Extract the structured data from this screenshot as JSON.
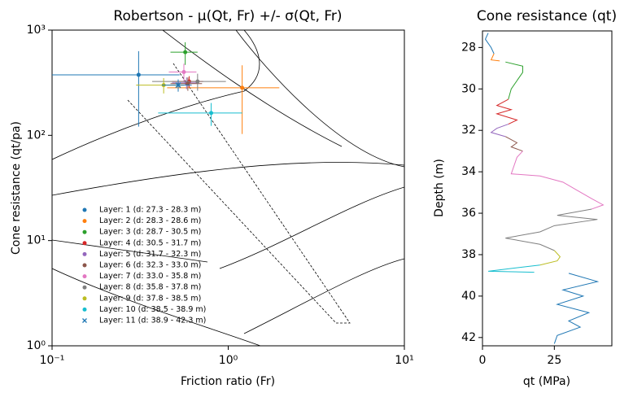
{
  "chart_data": [
    {
      "type": "scatter",
      "title": "Robertson - μ(Qt, Fr) +/- σ(Qt, Fr)",
      "x_label": "Friction ratio (Fr)",
      "y_label": "Cone resistance (qt/pa)",
      "xscale": "log",
      "yscale": "log",
      "legend": "lower left",
      "xlim": [
        0.1,
        10
      ],
      "ylim": [
        1,
        1000
      ],
      "xticks": [
        {
          "value": 0.1,
          "label": "10⁻¹"
        },
        {
          "value": 1,
          "label": "10⁰"
        },
        {
          "value": 10,
          "label": "10¹"
        }
      ],
      "yticks": [
        {
          "value": 1,
          "label": "10⁰"
        },
        {
          "value": 10,
          "label": "10¹"
        },
        {
          "value": 100,
          "label": "10²"
        },
        {
          "value": 1000,
          "label": "10³"
        }
      ],
      "series": [
        {
          "name": "Layer: 1 (d: 27.3 - 28.3 m)",
          "color": "#1f77b4",
          "marker": "o",
          "x": [
            0.31
          ],
          "values": [
            376
          ],
          "xerr": [
            0.22
          ],
          "yerr": [
            255
          ]
        },
        {
          "name": "Layer: 2 (d: 28.3 - 28.6 m)",
          "color": "#ff7f0e",
          "marker": "o",
          "x": [
            1.2
          ],
          "values": [
            283
          ],
          "xerr": [
            0.75
          ],
          "yerr": [
            180
          ]
        },
        {
          "name": "Layer: 3 (d: 28.7 - 30.5 m)",
          "color": "#2ca02c",
          "marker": "o",
          "x": [
            0.57
          ],
          "values": [
            617
          ],
          "xerr": [
            0.1
          ],
          "yerr": [
            150
          ]
        },
        {
          "name": "Layer: 4 (d: 30.5 - 31.7 m)",
          "color": "#d62728",
          "marker": "o",
          "x": [
            0.6
          ],
          "values": [
            325
          ],
          "xerr": [
            0.12
          ],
          "yerr": [
            40
          ]
        },
        {
          "name": "Layer: 5 (d: 31.7 - 32.3 m)",
          "color": "#9467bd",
          "marker": "o",
          "x": [
            0.58
          ],
          "values": [
            315
          ],
          "xerr": [
            0.1
          ],
          "yerr": [
            40
          ]
        },
        {
          "name": "Layer: 6 (d: 32.3 - 33.0 m)",
          "color": "#8c564b",
          "marker": "o",
          "x": [
            0.59
          ],
          "values": [
            310
          ],
          "xerr": [
            0.12
          ],
          "yerr": [
            45
          ]
        },
        {
          "name": "Layer: 7 (d: 33.0 - 35.8 m)",
          "color": "#e377c2",
          "marker": "o",
          "x": [
            0.56
          ],
          "values": [
            400
          ],
          "xerr": [
            0.1
          ],
          "yerr": [
            80
          ]
        },
        {
          "name": "Layer: 8 (d: 35.8 - 37.8 m)",
          "color": "#7f7f7f",
          "marker": "o",
          "x": [
            0.67
          ],
          "values": [
            325
          ],
          "xerr": [
            0.3
          ],
          "yerr": [
            60
          ]
        },
        {
          "name": "Layer: 9 (d: 37.8 - 38.5 m)",
          "color": "#bcbd22",
          "marker": "o",
          "x": [
            0.43
          ],
          "values": [
            300
          ],
          "xerr": [
            0.13
          ],
          "yerr": [
            50
          ]
        },
        {
          "name": "Layer: 10 (d: 38.5 - 38.9 m)",
          "color": "#17becf",
          "marker": "o",
          "x": [
            0.8
          ],
          "values": [
            163
          ],
          "xerr": [
            0.4
          ],
          "yerr": [
            40
          ]
        },
        {
          "name": "Layer: 11 (d: 38.9 - 42.3 m)",
          "color": "#1f77b4",
          "marker": "x",
          "x": [
            0.52
          ],
          "values": [
            300
          ],
          "xerr": [
            0.1
          ],
          "yerr": [
            40
          ]
        }
      ]
    },
    {
      "type": "profile",
      "title": "Cone resistance (qt)",
      "x_label": "qt (MPa)",
      "y_label": "Depth (m)",
      "xlim": [
        0,
        45
      ],
      "ylim": [
        42.4,
        27.2
      ],
      "xticks": [
        0,
        25
      ],
      "yticks": [
        28,
        30,
        32,
        34,
        36,
        38,
        40,
        42
      ],
      "series": [
        {
          "color": "#1f77b4",
          "x": [
            2,
            1,
            3,
            4
          ],
          "y": [
            27.3,
            27.6,
            28.0,
            28.3
          ]
        },
        {
          "color": "#ff7f0e",
          "x": [
            4,
            3,
            6
          ],
          "y": [
            28.3,
            28.6,
            28.65
          ]
        },
        {
          "color": "#2ca02c",
          "x": [
            8,
            14,
            14,
            12,
            10,
            9
          ],
          "y": [
            28.7,
            28.9,
            29.2,
            29.6,
            30.0,
            30.5
          ]
        },
        {
          "color": "#d62728",
          "x": [
            9,
            5,
            10,
            5,
            12,
            9
          ],
          "y": [
            30.5,
            30.8,
            31.0,
            31.2,
            31.5,
            31.7
          ]
        },
        {
          "color": "#9467bd",
          "x": [
            9,
            5,
            3,
            8
          ],
          "y": [
            31.7,
            31.9,
            32.1,
            32.3
          ]
        },
        {
          "color": "#8c564b",
          "x": [
            8,
            12,
            10,
            14
          ],
          "y": [
            32.3,
            32.6,
            32.8,
            33.0
          ]
        },
        {
          "color": "#e377c2",
          "x": [
            14,
            12,
            11,
            10,
            20,
            28,
            33,
            38,
            42,
            38
          ],
          "y": [
            33.0,
            33.3,
            33.7,
            34.1,
            34.2,
            34.5,
            34.9,
            35.3,
            35.6,
            35.8
          ]
        },
        {
          "color": "#7f7f7f",
          "x": [
            38,
            26,
            40,
            25,
            20,
            8,
            20,
            25
          ],
          "y": [
            35.8,
            36.1,
            36.3,
            36.6,
            36.9,
            37.2,
            37.5,
            37.8
          ]
        },
        {
          "color": "#bcbd22",
          "x": [
            25,
            27,
            26,
            20
          ],
          "y": [
            37.8,
            38.1,
            38.3,
            38.5
          ]
        },
        {
          "color": "#17becf",
          "x": [
            20,
            2,
            18
          ],
          "y": [
            38.5,
            38.8,
            38.85
          ]
        },
        {
          "color": "#1f77b4",
          "x": [
            30,
            40,
            28,
            35,
            26,
            37,
            30,
            34,
            26,
            25
          ],
          "y": [
            38.9,
            39.3,
            39.7,
            40.0,
            40.4,
            40.8,
            41.2,
            41.5,
            41.9,
            42.3
          ]
        }
      ]
    }
  ]
}
